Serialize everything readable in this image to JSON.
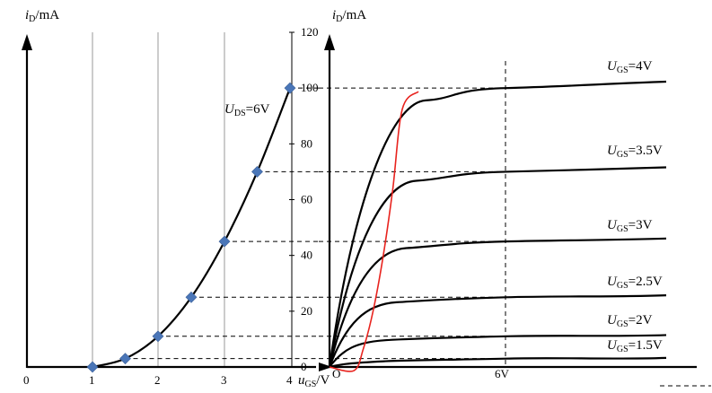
{
  "chart_data": [
    {
      "type": "scatter",
      "ylabel": "iD/mA",
      "xlabel": "uGS/V",
      "curve_label": "UDS=6V",
      "xlim": [
        0,
        4
      ],
      "ylim": [
        0,
        120
      ],
      "x_ticks": [
        "0",
        "1",
        "2",
        "3",
        "4"
      ],
      "y_ticks": [
        "0",
        "20",
        "40",
        "60",
        "80",
        "100",
        "120"
      ],
      "series": [
        {
          "name": "UDS=6V",
          "x": [
            1.0,
            1.5,
            2.0,
            2.5,
            3.0,
            3.5,
            4.0
          ],
          "y": [
            0,
            3,
            11,
            25,
            45,
            70,
            100
          ]
        }
      ],
      "grid": "vertical"
    },
    {
      "type": "line",
      "ylabel": "iD/mA",
      "origin_label": "O",
      "x_ticks": [
        "6V"
      ],
      "reference_x": 6,
      "series": [
        {
          "name": "UGS=4V",
          "saturation": 100
        },
        {
          "name": "UGS=3.5V",
          "saturation": 70
        },
        {
          "name": "UGS=3V",
          "saturation": 45
        },
        {
          "name": "UGS=2.5V",
          "saturation": 25
        },
        {
          "name": "UGS=2V",
          "saturation": 11
        },
        {
          "name": "UGS=1.5V",
          "saturation": 3
        }
      ],
      "boundary_color": "#e8231e",
      "grid": false
    }
  ]
}
